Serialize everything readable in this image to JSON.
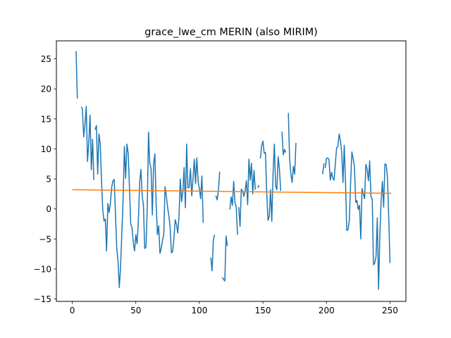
{
  "chart_data": {
    "type": "line",
    "title": "grace_lwe_cm MERIN (also MIRIM)",
    "xlabel": "",
    "ylabel": "",
    "xlim": [
      -12.5,
      262.5
    ],
    "ylim": [
      -15.4,
      28.0
    ],
    "xticks": [
      0,
      50,
      100,
      150,
      200,
      250
    ],
    "yticks": [
      -15,
      -10,
      -5,
      0,
      5,
      10,
      15,
      20,
      25
    ],
    "grid": false,
    "legend": "none",
    "series": [
      {
        "color": "#1f77b4",
        "points": [
          [
            3,
            26.3
          ],
          [
            4,
            18.4
          ],
          [
            null,
            null
          ],
          [
            7,
            17.0
          ],
          [
            8,
            16.7
          ],
          [
            9,
            12.0
          ],
          [
            10,
            14.0
          ],
          [
            11,
            17.1
          ],
          [
            12,
            7.9
          ],
          [
            13,
            11.0
          ],
          [
            14,
            15.6
          ],
          [
            15,
            6.5
          ],
          [
            16,
            11.6
          ],
          [
            17,
            4.8
          ],
          [
            null,
            null
          ],
          [
            18,
            13.2
          ],
          [
            19,
            13.9
          ],
          [
            20,
            5.8
          ],
          [
            21,
            12.5
          ],
          [
            22,
            10.9
          ],
          [
            23,
            4.9
          ],
          [
            24,
            -0.2
          ],
          [
            25,
            -2.0
          ],
          [
            26,
            -1.7
          ],
          [
            27,
            -7.0
          ],
          [
            28,
            0.9
          ],
          [
            29,
            -0.6
          ],
          [
            30,
            1.0
          ],
          [
            31,
            3.6
          ],
          [
            32,
            4.7
          ],
          [
            33,
            4.9
          ],
          [
            34,
            -1.0
          ],
          [
            35,
            -6.5
          ],
          [
            36,
            -8.7
          ],
          [
            37,
            -13.1
          ],
          [
            38,
            -9.7
          ],
          [
            39,
            -4.0
          ],
          [
            40,
            1.6
          ],
          [
            41,
            10.4
          ],
          [
            42,
            5.1
          ],
          [
            43,
            10.8
          ],
          [
            44,
            9.3
          ],
          [
            45,
            3.6
          ],
          [
            46,
            -2.5
          ],
          [
            47,
            -3.1
          ],
          [
            48,
            -5.6
          ],
          [
            49,
            -7.0
          ],
          [
            50,
            -4.3
          ],
          [
            51,
            -5.8
          ],
          [
            52,
            -2.0
          ],
          [
            53,
            4.3
          ],
          [
            54,
            6.6
          ],
          [
            55,
            2.2
          ],
          [
            56,
            0.6
          ],
          [
            57,
            -6.6
          ],
          [
            58,
            -6.4
          ],
          [
            59,
            0.0
          ],
          [
            60,
            12.8
          ],
          [
            61,
            7.6
          ],
          [
            62,
            6.7
          ],
          [
            63,
            -1.0
          ],
          [
            64,
            7.4
          ],
          [
            65,
            9.2
          ],
          [
            66,
            0.9
          ],
          [
            67,
            -4.3
          ],
          [
            68,
            -2.8
          ],
          [
            69,
            -7.4
          ],
          [
            70,
            -6.6
          ],
          [
            71,
            -5.2
          ],
          [
            72,
            -4.3
          ],
          [
            73,
            3.7
          ],
          [
            74,
            2.2
          ],
          [
            75,
            0.3
          ],
          [
            76,
            -1.1
          ],
          [
            77,
            -3.0
          ],
          [
            78,
            -7.3
          ],
          [
            79,
            -7.1
          ],
          [
            80,
            -4.9
          ],
          [
            81,
            -1.8
          ],
          [
            82,
            -2.6
          ],
          [
            83,
            -4.0
          ],
          [
            84,
            -1.2
          ],
          [
            85,
            5.0
          ],
          [
            86,
            1.2
          ],
          [
            87,
            2.9
          ],
          [
            88,
            6.9
          ],
          [
            89,
            0.2
          ],
          [
            90,
            10.8
          ],
          [
            91,
            3.5
          ],
          [
            92,
            3.6
          ],
          [
            93,
            6.7
          ],
          [
            94,
            2.2
          ],
          [
            95,
            5.0
          ],
          [
            96,
            8.3
          ],
          [
            97,
            4.2
          ],
          [
            98,
            8.5
          ],
          [
            99,
            4.6
          ],
          [
            100,
            3.4
          ],
          [
            101,
            1.7
          ],
          [
            102,
            5.5
          ],
          [
            103,
            -2.3
          ],
          [
            null,
            null
          ],
          [
            109,
            -8.1
          ],
          [
            110,
            -10.3
          ],
          [
            111,
            -5.2
          ],
          [
            112,
            -4.3
          ],
          [
            null,
            null
          ],
          [
            113,
            2.2
          ],
          [
            114,
            1.5
          ],
          [
            115,
            3.1
          ],
          [
            116,
            6.2
          ],
          [
            null,
            null
          ],
          [
            118,
            -11.4
          ],
          [
            119,
            -11.7
          ],
          [
            120,
            -12.0
          ],
          [
            121,
            -4.5
          ],
          [
            122,
            -6.2
          ],
          [
            null,
            null
          ],
          [
            124,
            -0.1
          ],
          [
            125,
            2.0
          ],
          [
            126,
            0.6
          ],
          [
            127,
            4.6
          ],
          [
            128,
            1.0
          ],
          [
            129,
            0.4
          ],
          [
            130,
            -4.3
          ],
          [
            null,
            null
          ],
          [
            131,
            0.3
          ],
          [
            132,
            -2.9
          ],
          [
            133,
            3.3
          ],
          [
            134,
            3.0
          ],
          [
            135,
            2.1
          ],
          [
            136,
            3.0
          ],
          [
            137,
            4.7
          ],
          [
            138,
            0.7
          ],
          [
            139,
            8.3
          ],
          [
            140,
            4.8
          ],
          [
            141,
            7.6
          ],
          [
            142,
            2.5
          ],
          [
            143,
            6.4
          ],
          [
            144,
            3.2
          ],
          [
            null,
            null
          ],
          [
            146,
            3.5
          ],
          [
            147,
            4.0
          ],
          [
            null,
            null
          ],
          [
            148,
            8.4
          ],
          [
            149,
            10.5
          ],
          [
            150,
            11.3
          ],
          [
            151,
            9.3
          ],
          [
            152,
            9.4
          ],
          [
            153,
            2.6
          ],
          [
            154,
            -1.9
          ],
          [
            155,
            -1.3
          ],
          [
            156,
            3.2
          ],
          [
            157,
            -2.1
          ],
          [
            158,
            6.0
          ],
          [
            159,
            10.8
          ],
          [
            160,
            3.8
          ],
          [
            161,
            3.2
          ],
          [
            162,
            8.7
          ],
          [
            163,
            6.6
          ],
          [
            164,
            3.0
          ],
          [
            null,
            null
          ],
          [
            165,
            12.9
          ],
          [
            166,
            9.0
          ],
          [
            167,
            9.9
          ],
          [
            168,
            9.4
          ],
          [
            null,
            null
          ],
          [
            170,
            16.0
          ],
          [
            171,
            8.4
          ],
          [
            172,
            5.8
          ],
          [
            173,
            4.4
          ],
          [
            174,
            7.1
          ],
          [
            175,
            5.8
          ],
          [
            176,
            11.0
          ],
          [
            null,
            null
          ],
          [
            197,
            5.8
          ],
          [
            198,
            7.6
          ],
          [
            null,
            null
          ],
          [
            199,
            6.8
          ],
          [
            200,
            8.4
          ],
          [
            201,
            8.5
          ],
          [
            202,
            8.2
          ],
          [
            203,
            4.8
          ],
          [
            204,
            6.1
          ],
          [
            205,
            5.1
          ],
          [
            206,
            4.8
          ],
          [
            207,
            7.6
          ],
          [
            208,
            10.2
          ],
          [
            209,
            10.4
          ],
          [
            210,
            12.5
          ],
          [
            211,
            11.3
          ],
          [
            212,
            9.4
          ],
          [
            213,
            4.4
          ],
          [
            214,
            10.6
          ],
          [
            215,
            4.4
          ],
          [
            216,
            -3.6
          ],
          [
            217,
            -3.4
          ],
          [
            218,
            -1.9
          ],
          [
            219,
            4.4
          ],
          [
            220,
            9.5
          ],
          [
            221,
            8.4
          ],
          [
            222,
            7.1
          ],
          [
            223,
            1.1
          ],
          [
            224,
            1.4
          ],
          [
            225,
            -0.1
          ],
          [
            226,
            0.6
          ],
          [
            227,
            -5.0
          ],
          [
            228,
            3.4
          ],
          [
            229,
            2.5
          ],
          [
            230,
            1.7
          ],
          [
            231,
            7.4
          ],
          [
            232,
            6.6
          ],
          [
            233,
            4.7
          ],
          [
            234,
            8.0
          ],
          [
            235,
            2.0
          ],
          [
            236,
            1.7
          ],
          [
            237,
            -9.3
          ],
          [
            238,
            -9.0
          ],
          [
            239,
            -7.9
          ],
          [
            240,
            -1.5
          ],
          [
            241,
            -13.4
          ],
          [
            242,
            -4.4
          ],
          [
            243,
            1.3
          ],
          [
            244,
            4.6
          ],
          [
            245,
            0.3
          ],
          [
            246,
            7.5
          ],
          [
            247,
            7.4
          ],
          [
            248,
            5.3
          ],
          [
            249,
            -1.5
          ],
          [
            250,
            -9.0
          ]
        ]
      },
      {
        "color": "#ff7f0e",
        "points": [
          [
            0,
            3.2
          ],
          [
            251,
            2.6
          ]
        ]
      }
    ]
  }
}
